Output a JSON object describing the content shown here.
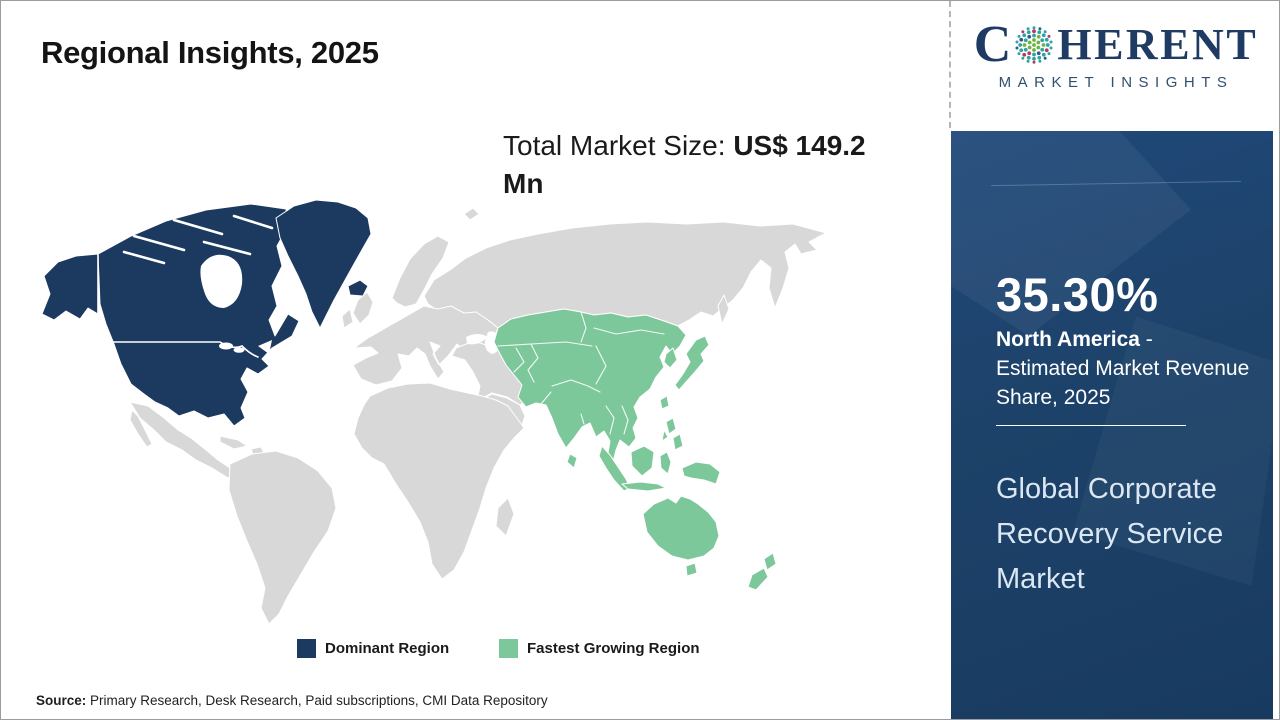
{
  "page": {
    "title": "Regional Insights, 2025"
  },
  "logo": {
    "brand_c": "C",
    "brand_rest": "HERENT",
    "subtitle": "MARKET INSIGHTS"
  },
  "market_size": {
    "prefix": "Total Market Size: ",
    "value": "US$ 149.2 Mn"
  },
  "map": {
    "colors": {
      "dominant": "#1c3a60",
      "fastest": "#7cc89a",
      "other": "#d8d8d8"
    }
  },
  "legend": {
    "items": [
      {
        "label": "Dominant Region",
        "color": "#1c3a60"
      },
      {
        "label": "Fastest Growing Region",
        "color": "#7cc89a"
      }
    ]
  },
  "sidebar": {
    "share_value": "35.30%",
    "share_region": "North America",
    "share_desc": " - Estimated Market Revenue Share, 2025",
    "market_name": "Global Corporate Recovery Service Market"
  },
  "source": {
    "label": "Source:",
    "text": " Primary Research, Desk Research, Paid subscriptions, CMI Data Repository"
  },
  "chart_data": {
    "type": "map",
    "subtype": "world-choropleth",
    "title": "Regional Insights, 2025",
    "total_market_size": "US$ 149.2 Mn",
    "market": "Global Corporate Recovery Service Market",
    "legend": [
      "Dominant Region",
      "Fastest Growing Region"
    ],
    "regions": [
      {
        "name": "North America",
        "classification": "Dominant Region",
        "estimated_market_revenue_share_2025_pct": 35.3,
        "color": "#1c3a60"
      },
      {
        "name": "Asia Pacific",
        "classification": "Fastest Growing Region",
        "color": "#7cc89a"
      },
      {
        "name": "Rest of World",
        "classification": "Not highlighted",
        "color": "#d8d8d8"
      }
    ]
  }
}
